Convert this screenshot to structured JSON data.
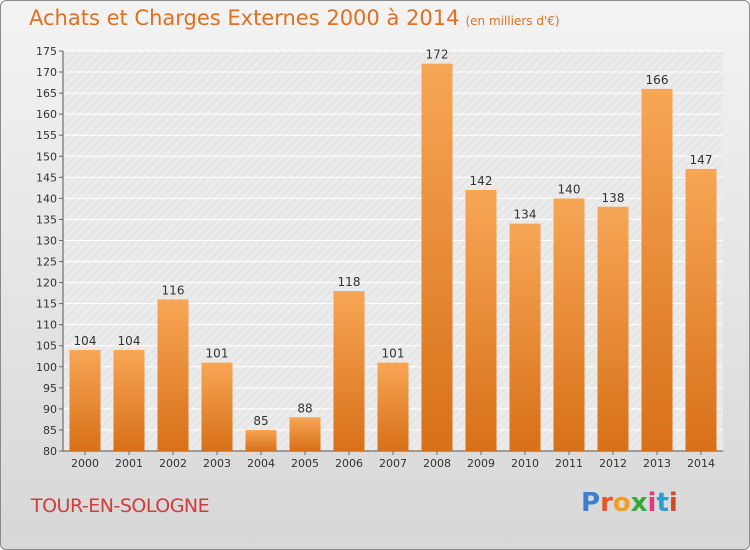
{
  "header": {
    "title": "Achats et Charges Externes 2000 à 2014",
    "unit": "(en milliers d'€)"
  },
  "commune": "TOUR-EN-SOLOGNE",
  "logo": {
    "text": "Proxiti"
  },
  "colors": {
    "title": "#e07020",
    "bar_top": "#f7a656",
    "bar_bottom": "#d87018",
    "commune": "#d23c3c"
  },
  "chart_data": {
    "type": "bar",
    "categories": [
      "2000",
      "2001",
      "2002",
      "2003",
      "2004",
      "2005",
      "2006",
      "2007",
      "2008",
      "2009",
      "2010",
      "2011",
      "2012",
      "2013",
      "2014"
    ],
    "values": [
      104,
      104,
      116,
      101,
      85,
      88,
      118,
      101,
      172,
      142,
      134,
      140,
      138,
      166,
      147
    ],
    "ylim": [
      80,
      175
    ],
    "ytick_step": 5,
    "grid": true,
    "xlabel": "",
    "ylabel": ""
  }
}
